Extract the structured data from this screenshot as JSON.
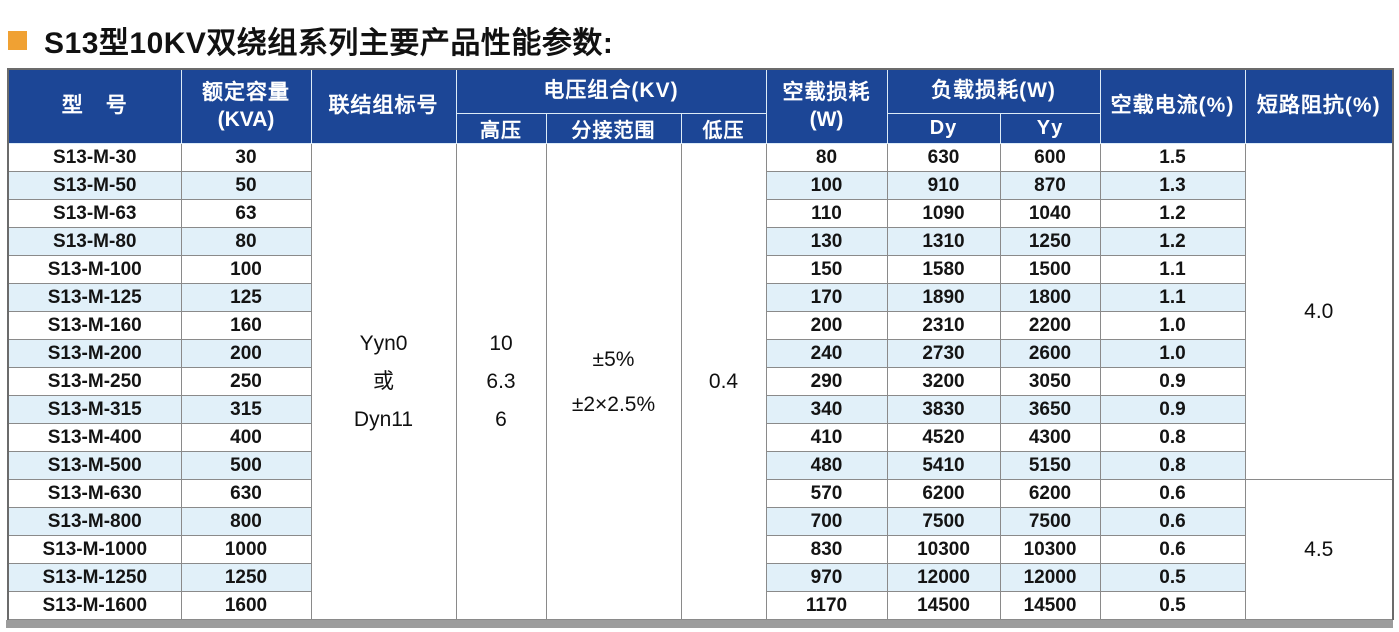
{
  "page": {
    "title": "S13型10KV双绕组系列主要产品性能参数:",
    "accent_color": "#f0a133",
    "header_bg": "#1c4696",
    "stripe_color": "#e1f0f9"
  },
  "table": {
    "headers": {
      "model": "型　号",
      "capacity_line1": "额定容量",
      "capacity_line2": "(KVA)",
      "connection": "联结组标号",
      "voltage_group": "电压组合(KV)",
      "hv": "高压",
      "tap_range": "分接范围",
      "lv": "低压",
      "no_load_loss_line1": "空载损耗",
      "no_load_loss_line2": "(W)",
      "load_loss": "负载损耗(W)",
      "dy": "Dy",
      "yy": "Yy",
      "no_load_current": "空载电流(%)",
      "short_circuit_impedance": "短路阻抗(%)"
    },
    "merged": {
      "connection_lines": [
        "Yyn0",
        "或",
        "Dyn11"
      ],
      "hv_lines": [
        "10",
        "6.3",
        "6"
      ],
      "tap_lines": [
        "±5%",
        "±2×2.5%"
      ],
      "lv": "0.4",
      "impedance_groups": [
        {
          "value": "4.0",
          "rows": 12
        },
        {
          "value": "4.5",
          "rows": 5
        }
      ]
    },
    "rows": [
      {
        "model": "S13-M-30",
        "kva": "30",
        "no_load": "80",
        "dy": "630",
        "yy": "600",
        "current": "1.5"
      },
      {
        "model": "S13-M-50",
        "kva": "50",
        "no_load": "100",
        "dy": "910",
        "yy": "870",
        "current": "1.3"
      },
      {
        "model": "S13-M-63",
        "kva": "63",
        "no_load": "110",
        "dy": "1090",
        "yy": "1040",
        "current": "1.2"
      },
      {
        "model": "S13-M-80",
        "kva": "80",
        "no_load": "130",
        "dy": "1310",
        "yy": "1250",
        "current": "1.2"
      },
      {
        "model": "S13-M-100",
        "kva": "100",
        "no_load": "150",
        "dy": "1580",
        "yy": "1500",
        "current": "1.1"
      },
      {
        "model": "S13-M-125",
        "kva": "125",
        "no_load": "170",
        "dy": "1890",
        "yy": "1800",
        "current": "1.1"
      },
      {
        "model": "S13-M-160",
        "kva": "160",
        "no_load": "200",
        "dy": "2310",
        "yy": "2200",
        "current": "1.0"
      },
      {
        "model": "S13-M-200",
        "kva": "200",
        "no_load": "240",
        "dy": "2730",
        "yy": "2600",
        "current": "1.0"
      },
      {
        "model": "S13-M-250",
        "kva": "250",
        "no_load": "290",
        "dy": "3200",
        "yy": "3050",
        "current": "0.9"
      },
      {
        "model": "S13-M-315",
        "kva": "315",
        "no_load": "340",
        "dy": "3830",
        "yy": "3650",
        "current": "0.9"
      },
      {
        "model": "S13-M-400",
        "kva": "400",
        "no_load": "410",
        "dy": "4520",
        "yy": "4300",
        "current": "0.8"
      },
      {
        "model": "S13-M-500",
        "kva": "500",
        "no_load": "480",
        "dy": "5410",
        "yy": "5150",
        "current": "0.8"
      },
      {
        "model": "S13-M-630",
        "kva": "630",
        "no_load": "570",
        "dy": "6200",
        "yy": "6200",
        "current": "0.6"
      },
      {
        "model": "S13-M-800",
        "kva": "800",
        "no_load": "700",
        "dy": "7500",
        "yy": "7500",
        "current": "0.6"
      },
      {
        "model": "S13-M-1000",
        "kva": "1000",
        "no_load": "830",
        "dy": "10300",
        "yy": "10300",
        "current": "0.6"
      },
      {
        "model": "S13-M-1250",
        "kva": "1250",
        "no_load": "970",
        "dy": "12000",
        "yy": "12000",
        "current": "0.5"
      },
      {
        "model": "S13-M-1600",
        "kva": "1600",
        "no_load": "1170",
        "dy": "14500",
        "yy": "14500",
        "current": "0.5"
      }
    ]
  }
}
